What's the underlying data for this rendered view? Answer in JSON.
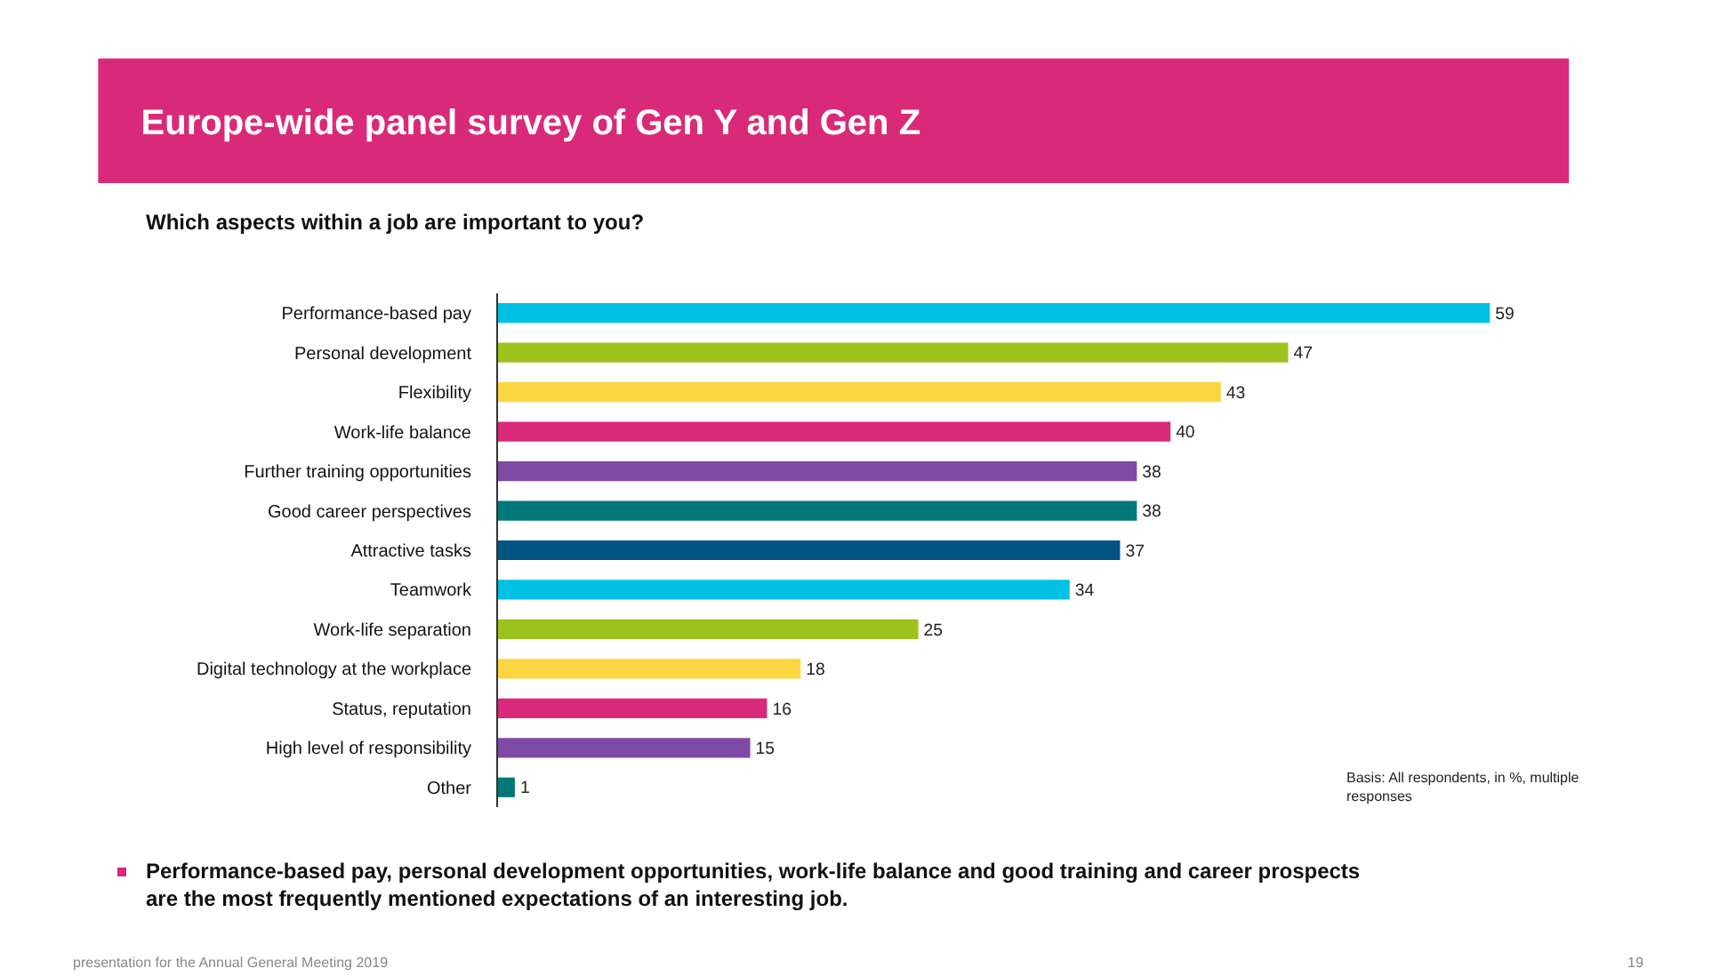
{
  "chart_data": {
    "type": "bar",
    "orientation": "horizontal",
    "title": "Europe-wide panel survey of Gen Y and Gen Z",
    "subtitle": "Which aspects within a job are important to you?",
    "categories": [
      "Performance-based pay",
      "Personal development",
      "Flexibility",
      "Work-life balance",
      "Further training opportunities",
      "Good career perspectives",
      "Attractive tasks",
      "Teamwork",
      "Work-life separation",
      "Digital technology at the workplace",
      "Status, reputation",
      "High level of responsibility",
      "Other"
    ],
    "values": [
      59,
      47,
      43,
      40,
      38,
      38,
      37,
      34,
      25,
      18,
      16,
      15,
      1
    ],
    "colors": [
      "#00c1e3",
      "#9cc31c",
      "#fdd540",
      "#d92a79",
      "#7e4aa5",
      "#00787a",
      "#005582",
      "#00c1e3",
      "#9cc31c",
      "#fdd540",
      "#d92a79",
      "#7e4aa5",
      "#00787a"
    ],
    "data_labels": true,
    "grid": false,
    "legend": false,
    "annotations": [
      "Basis: All respondents, in %, multiple responses",
      "Performance-based pay, personal development opportunities, work-life balance and good training and career prospects are the most frequently mentioned expectations of an interesting job.",
      "presentation for the Annual General Meeting 2019",
      "19"
    ]
  }
}
